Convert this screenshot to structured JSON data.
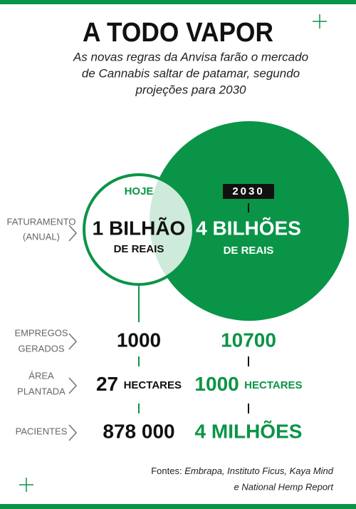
{
  "title": "A TODO VAPOR",
  "subtitle": [
    "As novas regras da Anvisa farão o mercado",
    "de Cannabis saltar de patamar, segundo",
    "projeções para 2030"
  ],
  "columns": {
    "today": "HOJE",
    "future": "2030"
  },
  "revenue": {
    "label": [
      "FATURAMENTO",
      "(ANUAL)"
    ],
    "today": {
      "value": "1 BILHÃO",
      "unit": "DE REAIS"
    },
    "future": {
      "value": "4 BILHÕES",
      "unit": "DE REAIS"
    }
  },
  "rows": [
    {
      "label": [
        "EMPREGOS",
        "GERADOS"
      ],
      "today": {
        "value": "1000"
      },
      "future": {
        "value": "10700"
      }
    },
    {
      "label": [
        "ÁREA",
        "PLANTADA"
      ],
      "today": {
        "value": "27",
        "unit": "HECTARES"
      },
      "future": {
        "value": "1000",
        "unit": "HECTARES"
      }
    },
    {
      "label": [
        "PACIENTES"
      ],
      "today": {
        "value": "878 000"
      },
      "future": {
        "value": "4 MILHÕES"
      }
    }
  ],
  "sources": {
    "prefix": "Fontes:",
    "lines": [
      "Embrapa, Instituto Ficus, Kaya Mind",
      "e National Hemp Report"
    ]
  }
}
